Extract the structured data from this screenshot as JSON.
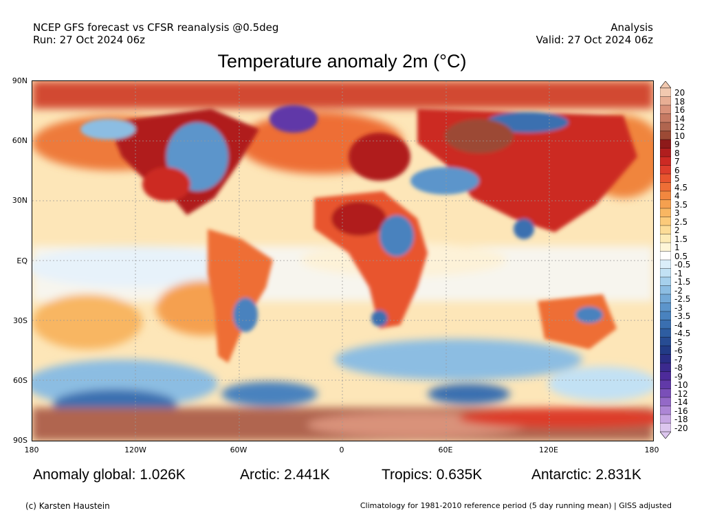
{
  "header": {
    "line1_left": "NCEP GFS forecast vs CFSR reanalysis @0.5deg",
    "line2_left": "Run: 27 Oct 2024 06z",
    "line1_right": "Analysis",
    "line2_right": "Valid: 27 Oct 2024 06z"
  },
  "title": "Temperature anomaly 2m (°C)",
  "lat_labels": [
    "90N",
    "60N",
    "30N",
    "EQ",
    "30S",
    "60S",
    "90S"
  ],
  "lon_labels": [
    "180",
    "120W",
    "60W",
    "0",
    "60E",
    "120E",
    "180"
  ],
  "colorbar": {
    "labels": [
      "20",
      "18",
      "16",
      "14",
      "12",
      "10",
      "9",
      "8",
      "7",
      "6",
      "5",
      "4.5",
      "4",
      "3.5",
      "3",
      "2.5",
      "2",
      "1.5",
      "1",
      "0.5",
      "-0.5",
      "-1",
      "-1.5",
      "-2",
      "-2.5",
      "-3",
      "-3.5",
      "-4",
      "-4.5",
      "-5",
      "-6",
      "-7",
      "-8",
      "-9",
      "-10",
      "-12",
      "-14",
      "-16",
      "-18",
      "-20"
    ],
    "colors": [
      "#f2c9b0",
      "#e8ae94",
      "#d9927a",
      "#c67a63",
      "#b0654f",
      "#9c4a35",
      "#8e1a1a",
      "#b01e1e",
      "#cc2a24",
      "#dd3d2c",
      "#e8552f",
      "#ee6e36",
      "#f2873f",
      "#f5a04f",
      "#f8b662",
      "#fbca7a",
      "#fcdc97",
      "#fdebb6",
      "#fef6d8",
      "#ffffff",
      "#dbeefa",
      "#c2e1f4",
      "#a6d0ec",
      "#8cbde2",
      "#73a9d7",
      "#5c95cb",
      "#4982be",
      "#3a6fb0",
      "#2e5da1",
      "#274c93",
      "#223b86",
      "#2a2e86",
      "#3b2a8e",
      "#4d2b9a",
      "#6139a8",
      "#7a4fb8",
      "#9469c7",
      "#ad86d5",
      "#c6a6e2",
      "#dcc6ee"
    ]
  },
  "stats": {
    "global": "Anomaly global: 1.026K",
    "arctic": "Arctic: 2.441K",
    "tropics": "Tropics: 0.635K",
    "antarctic": "Antarctic: 2.831K"
  },
  "footer": {
    "left": "(c) Karsten Haustein",
    "right": "Climatology for 1981-2010 reference period (5 day running mean) | GISS adjusted"
  }
}
